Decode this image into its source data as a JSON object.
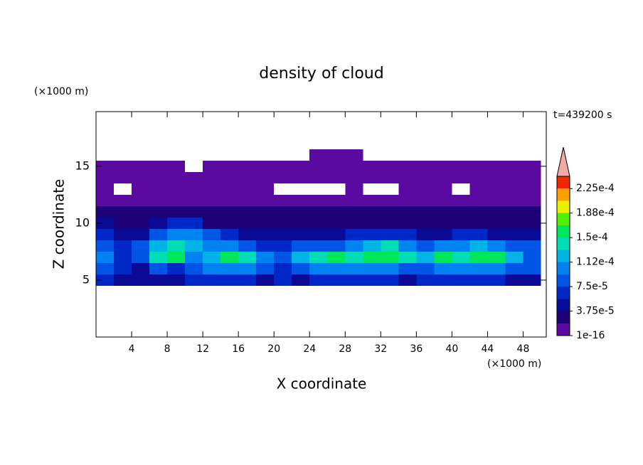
{
  "chart_data": {
    "type": "contour",
    "title": "density of cloud",
    "y_unit": "(×1000 m)",
    "x_unit": "(×1000 m)",
    "time_label": "t=439200 s",
    "xlabel": "X coordinate",
    "ylabel": "Z coordinate",
    "xlim": [
      0,
      50.6
    ],
    "ylim": [
      0,
      19.8
    ],
    "xticks": [
      4,
      8,
      12,
      16,
      20,
      24,
      28,
      32,
      36,
      40,
      44,
      48
    ],
    "yticks": [
      5,
      10,
      15
    ],
    "x": [
      1,
      3,
      5,
      7,
      9,
      11,
      13,
      15,
      17,
      19,
      21,
      23,
      25,
      27,
      29,
      31,
      33,
      35,
      37,
      39,
      41,
      43,
      45,
      47,
      49
    ],
    "z": [
      16,
      15,
      14,
      13,
      12,
      11,
      10,
      9,
      8,
      7,
      6,
      5
    ],
    "values": [
      [
        null,
        null,
        null,
        null,
        null,
        null,
        null,
        null,
        null,
        null,
        null,
        null,
        5e-06,
        5e-06,
        5e-06,
        null,
        null,
        null,
        null,
        null,
        null,
        null,
        null,
        null,
        null
      ],
      [
        5e-06,
        5e-06,
        5e-06,
        5e-06,
        5e-06,
        null,
        5e-06,
        5e-06,
        5e-06,
        5e-06,
        5e-06,
        5e-06,
        5e-06,
        5e-06,
        5e-06,
        5e-06,
        5e-06,
        5e-06,
        5e-06,
        5e-06,
        5e-06,
        5e-06,
        5e-06,
        5e-06,
        5e-06
      ],
      [
        5e-06,
        5e-06,
        5e-06,
        5e-06,
        5e-06,
        5e-06,
        5e-06,
        5e-06,
        5e-06,
        5e-06,
        5e-06,
        5e-06,
        5e-06,
        5e-06,
        5e-06,
        5e-06,
        5e-06,
        5e-06,
        5e-06,
        5e-06,
        5e-06,
        5e-06,
        5e-06,
        5e-06,
        5e-06
      ],
      [
        5e-06,
        null,
        5e-06,
        5e-06,
        5e-06,
        5e-06,
        5e-06,
        5e-06,
        5e-06,
        5e-06,
        null,
        null,
        null,
        null,
        5e-06,
        null,
        null,
        5e-06,
        5e-06,
        5e-06,
        null,
        5e-06,
        5e-06,
        5e-06,
        5e-06
      ],
      [
        1e-05,
        1e-05,
        1e-05,
        1e-05,
        1e-05,
        1e-05,
        1e-05,
        1e-05,
        1e-05,
        1e-05,
        1e-05,
        1e-05,
        1e-05,
        1e-05,
        1e-05,
        1e-05,
        1e-05,
        1e-05,
        1e-05,
        1e-05,
        1e-05,
        1e-05,
        1e-05,
        1e-05,
        1e-05
      ],
      [
        2e-05,
        2e-05,
        2e-05,
        2e-05,
        2e-05,
        2e-05,
        2e-05,
        2e-05,
        2e-05,
        2e-05,
        2e-05,
        2e-05,
        2e-05,
        2e-05,
        2e-05,
        2e-05,
        2e-05,
        2e-05,
        2e-05,
        2e-05,
        2e-05,
        2e-05,
        2e-05,
        2e-05,
        2e-05
      ],
      [
        4e-05,
        3e-05,
        3e-05,
        5e-05,
        6e-05,
        6e-05,
        3e-05,
        3e-05,
        3e-05,
        3e-05,
        3e-05,
        3e-05,
        3e-05,
        3e-05,
        3e-05,
        3e-05,
        3e-05,
        3e-05,
        3e-05,
        3e-05,
        3e-05,
        3e-05,
        3e-05,
        3e-05,
        3e-05
      ],
      [
        6e-05,
        5e-05,
        4e-05,
        8e-05,
        0.0001,
        0.0001,
        9e-05,
        7e-05,
        5e-05,
        4e-05,
        4e-05,
        4e-05,
        5e-05,
        5e-05,
        6e-05,
        6e-05,
        7e-05,
        6e-05,
        5e-05,
        5e-05,
        6e-05,
        6e-05,
        5e-05,
        5e-05,
        5e-05
      ],
      [
        8e-05,
        7e-05,
        9e-05,
        0.00013,
        0.000145,
        0.00012,
        0.0001,
        0.00011,
        8e-05,
        7e-05,
        6e-05,
        8e-05,
        9e-05,
        9e-05,
        0.0001,
        0.00012,
        0.000135,
        0.00011,
        9e-05,
        0.0001,
        0.00011,
        0.00012,
        0.000105,
        9e-05,
        8e-05
      ],
      [
        0.0001,
        6e-05,
        8e-05,
        0.000145,
        0.00016,
        0.00011,
        0.00013,
        0.000155,
        0.00014,
        0.00011,
        9e-05,
        0.00012,
        0.00014,
        0.00015,
        0.000145,
        0.000155,
        0.000165,
        0.00014,
        0.00013,
        0.00015,
        0.000145,
        0.00016,
        0.000155,
        0.00012,
        9e-05
      ],
      [
        9e-05,
        7e-05,
        5e-05,
        8e-05,
        7e-05,
        9e-05,
        0.0001,
        0.000105,
        0.0001,
        9e-05,
        7e-05,
        8e-05,
        0.0001,
        0.000105,
        0.00011,
        0.0001,
        0.000105,
        8e-05,
        9e-05,
        0.0001,
        0.0001,
        0.000105,
        0.0001,
        9e-05,
        8e-05
      ],
      [
        6e-05,
        5e-05,
        4e-05,
        5e-05,
        5e-05,
        6e-05,
        6e-05,
        6e-05,
        6e-05,
        5e-05,
        6e-05,
        5e-05,
        6e-05,
        6e-05,
        6e-05,
        6e-05,
        6e-05,
        5e-05,
        6e-05,
        6e-05,
        6e-05,
        6e-05,
        6e-05,
        5e-05,
        5e-05
      ]
    ],
    "levels": [
      1e-16,
      1.875e-05,
      3.75e-05,
      5.625e-05,
      7.5e-05,
      9.375e-05,
      0.0001125,
      0.00013125,
      0.00015,
      0.00016875,
      0.0001875,
      0.00020625,
      0.000225,
      0.00024375
    ],
    "colors": [
      "#5a0aa0",
      "#1e0078",
      "#0a0a96",
      "#0028c8",
      "#0055e6",
      "#0082f0",
      "#00b4e6",
      "#00dcb4",
      "#00e65a",
      "#50f000",
      "#e6f000",
      "#ffa000",
      "#f02800"
    ],
    "extend_color": "#f0a8a8",
    "colorbar_ticks": [
      {
        "value": 1e-16,
        "label": "1e-16"
      },
      {
        "value": 3.75e-05,
        "label": "3.75e-5"
      },
      {
        "value": 7.5e-05,
        "label": "7.5e-5"
      },
      {
        "value": 0.0001125,
        "label": "1.12e-4"
      },
      {
        "value": 0.00015,
        "label": "1.5e-4"
      },
      {
        "value": 0.0001875,
        "label": "1.88e-4"
      },
      {
        "value": 0.000225,
        "label": "2.25e-4"
      }
    ]
  }
}
